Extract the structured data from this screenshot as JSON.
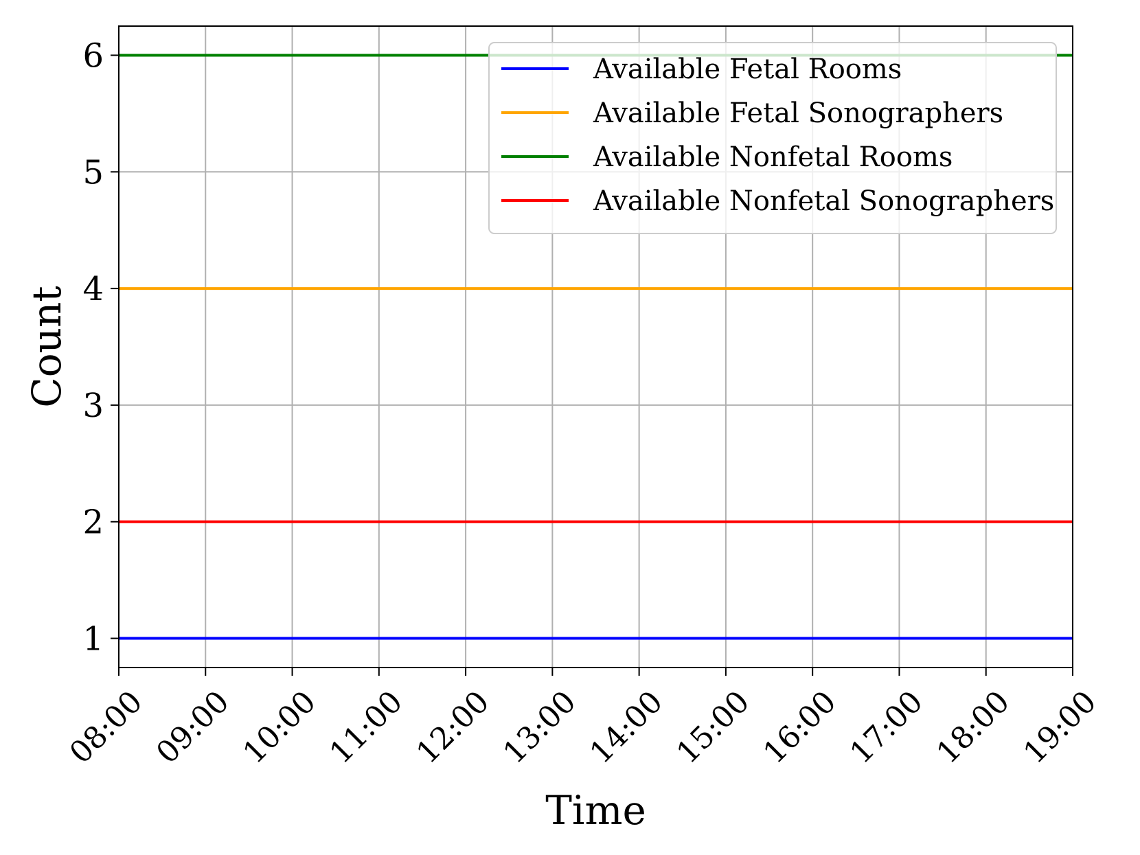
{
  "chart_data": {
    "type": "line",
    "title": "",
    "xlabel": "Time",
    "ylabel": "Count",
    "x": [
      "08:00",
      "09:00",
      "10:00",
      "11:00",
      "12:00",
      "13:00",
      "14:00",
      "15:00",
      "16:00",
      "17:00",
      "18:00",
      "19:00"
    ],
    "xlim": [
      "08:00",
      "19:00"
    ],
    "ylim": [
      0.75,
      6.25
    ],
    "yticks": [
      1,
      2,
      3,
      4,
      5,
      6
    ],
    "grid": true,
    "legend_position": "top-right",
    "series": [
      {
        "name": "Available Fetal Rooms",
        "color": "#0000ff",
        "values": [
          1,
          1,
          1,
          1,
          1,
          1,
          1,
          1,
          1,
          1,
          1,
          1
        ]
      },
      {
        "name": "Available Fetal Sonographers",
        "color": "#ffa500",
        "values": [
          4,
          4,
          4,
          4,
          4,
          4,
          4,
          4,
          4,
          4,
          4,
          4
        ]
      },
      {
        "name": "Available Nonfetal Rooms",
        "color": "#008000",
        "values": [
          6,
          6,
          6,
          6,
          6,
          6,
          6,
          6,
          6,
          6,
          6,
          6
        ]
      },
      {
        "name": "Available Nonfetal Sonographers",
        "color": "#ff0000",
        "values": [
          2,
          2,
          2,
          2,
          2,
          2,
          2,
          2,
          2,
          2,
          2,
          2
        ]
      }
    ]
  }
}
